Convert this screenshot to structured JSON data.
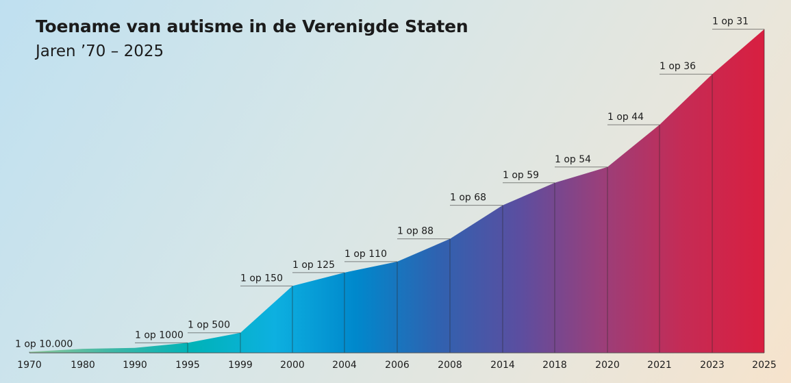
{
  "chart_data": {
    "type": "area",
    "title": "Toename van autisme in de Verenigde Staten",
    "subtitle": "Jaren ’70 – 2025",
    "categories": [
      "1970",
      "1980",
      "1990",
      "1995",
      "1999",
      "2000",
      "2004",
      "2006",
      "2008",
      "2014",
      "2018",
      "2020",
      "2021",
      "2023",
      "2025"
    ],
    "series": [
      {
        "values": [
          0.0001,
          null,
          null,
          0.001,
          0.002,
          0.00667,
          0.008,
          0.00909,
          0.01136,
          0.01471,
          0.01695,
          0.01852,
          0.02273,
          0.02778,
          0.03226
        ],
        "data_labels": [
          "1 op 10.000",
          null,
          null,
          "1 op 1000",
          "1 op 500",
          "1 op 150",
          "1 op 125",
          "1 op 110",
          "1 op 88",
          "1 op 68",
          "1 op 59",
          "1 op 54",
          "1 op 44",
          "1 op 36",
          "1 op 31"
        ]
      }
    ],
    "ylabel": "",
    "xlabel": "",
    "ylim": [
      0,
      0.0323
    ],
    "gradient_colors": [
      "#8fc89a",
      "#3fb7a6",
      "#00b3b8",
      "#0db0e0",
      "#0088cc",
      "#2f62b0",
      "#5b4ea0",
      "#9a3f7a",
      "#c52b55",
      "#d81f40"
    ],
    "grid": false,
    "legend": "none"
  }
}
